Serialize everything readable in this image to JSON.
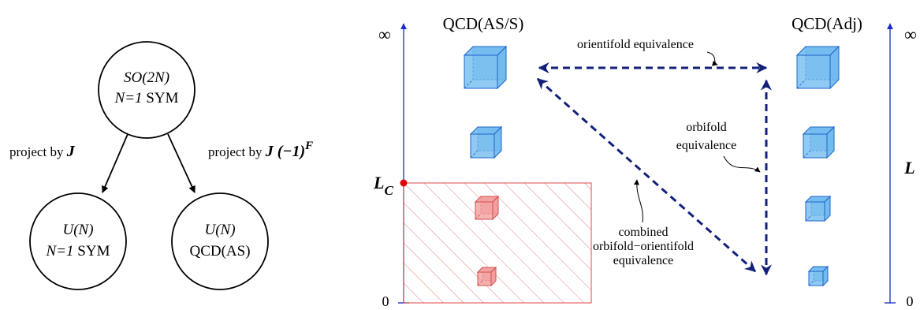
{
  "left_diagram": {
    "top_node": {
      "line1": "SO(2N)",
      "line2_italic": "N=1",
      "line2_rest": " SYM"
    },
    "left_node": {
      "line1": "U(N)",
      "line2_italic": "N=1",
      "line2_rest": " SYM"
    },
    "right_node": {
      "line1": "U(N)",
      "line2": "QCD(AS)"
    },
    "left_edge": {
      "text": "project by ",
      "italic": "J"
    },
    "right_edge": {
      "text": "project by ",
      "italic": "J (−1)",
      "superscript": "F"
    }
  },
  "right_diagram": {
    "title_left": "QCD(AS/S)",
    "title_right": "QCD(Adj)",
    "left_axis": {
      "top": "∞",
      "bottom": "0",
      "critical_label": "L",
      "critical_sub": "C"
    },
    "right_axis": {
      "top": "∞",
      "bottom": "0",
      "label": "L"
    },
    "orientifold_label": "orientifold equivalence",
    "orbifold_label": [
      "orbifold",
      "equivalence"
    ],
    "combined_label": [
      "combined",
      "orbifold−orientifold",
      "equivalence"
    ]
  },
  "colors": {
    "axis_blue": "#1a2bd0",
    "arrow_navy": "#12207a",
    "cube_blue": "#6bb8ee",
    "cube_red": "#f29a9a",
    "hatch_red": "#e04848",
    "critical_point": "#e00000"
  }
}
